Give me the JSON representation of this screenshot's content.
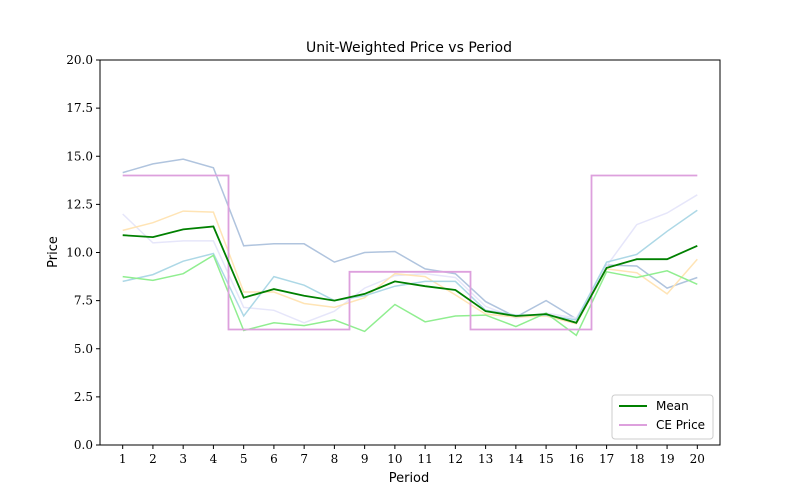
{
  "chart_data": {
    "type": "line",
    "title": "Unit-Weighted Price vs Period",
    "xlabel": "Period",
    "ylabel": "Price",
    "x": [
      1,
      2,
      3,
      4,
      5,
      6,
      7,
      8,
      9,
      10,
      11,
      12,
      13,
      14,
      15,
      16,
      17,
      18,
      19,
      20
    ],
    "x_tick_labels": [
      "1",
      "2",
      "3",
      "4",
      "5",
      "6",
      "7",
      "8",
      "9",
      "10",
      "11",
      "12",
      "13",
      "14",
      "15",
      "16",
      "17",
      "18",
      "19",
      "20"
    ],
    "xlim": [
      0.25,
      20.75
    ],
    "ylim": [
      0,
      20
    ],
    "y_ticks": [
      0,
      2.5,
      5,
      7.5,
      10,
      12.5,
      15,
      17.5,
      20
    ],
    "y_tick_labels": [
      "0.0",
      "2.5",
      "5.0",
      "7.5",
      "10.0",
      "12.5",
      "15.0",
      "17.5",
      "20.0"
    ],
    "grid": false,
    "legend_position": "lower-right",
    "background_series": [
      {
        "color": "#b0c4de",
        "values": [
          14.15,
          14.6,
          14.85,
          14.4,
          10.35,
          10.45,
          10.45,
          9.5,
          10.0,
          10.05,
          9.15,
          8.9,
          7.45,
          6.65,
          7.5,
          6.55,
          9.35,
          9.3,
          8.15,
          8.7
        ]
      },
      {
        "color": "#e6e6fa",
        "values": [
          12.0,
          10.5,
          10.6,
          10.6,
          7.15,
          7.0,
          6.35,
          6.95,
          8.15,
          8.8,
          8.9,
          8.7,
          7.2,
          6.6,
          6.85,
          6.6,
          9.3,
          11.45,
          12.05,
          13.0
        ]
      },
      {
        "color": "#ffe4b5",
        "values": [
          11.15,
          11.55,
          12.15,
          12.1,
          7.95,
          7.95,
          7.35,
          7.15,
          7.65,
          8.9,
          8.75,
          7.8,
          6.8,
          6.65,
          6.7,
          6.3,
          9.15,
          8.95,
          7.85,
          9.65
        ]
      },
      {
        "color": "#add8e6",
        "values": [
          8.5,
          8.85,
          9.55,
          9.95,
          6.7,
          8.75,
          8.3,
          7.5,
          7.75,
          8.25,
          8.5,
          8.5,
          7.0,
          6.75,
          6.75,
          6.5,
          9.5,
          9.9,
          11.1,
          12.2
        ]
      },
      {
        "color": "#90ee90",
        "values": [
          8.75,
          8.55,
          8.9,
          9.85,
          5.95,
          6.35,
          6.2,
          6.5,
          5.9,
          7.3,
          6.4,
          6.7,
          6.75,
          6.15,
          6.85,
          5.7,
          9.0,
          8.7,
          9.05,
          8.35
        ]
      }
    ],
    "series": [
      {
        "name": "Mean",
        "color": "#008000",
        "values": [
          10.9,
          10.8,
          11.2,
          11.35,
          7.65,
          8.1,
          7.75,
          7.5,
          7.85,
          8.5,
          8.25,
          8.05,
          6.95,
          6.7,
          6.8,
          6.35,
          9.2,
          9.65,
          9.65,
          10.35
        ]
      },
      {
        "name": "CE Price",
        "color": "#dda0dd",
        "step_points": [
          [
            1,
            14
          ],
          [
            4.5,
            14
          ],
          [
            4.5,
            6
          ],
          [
            8.5,
            6
          ],
          [
            8.5,
            9
          ],
          [
            12.5,
            9
          ],
          [
            12.5,
            6
          ],
          [
            16.5,
            6
          ],
          [
            16.5,
            14
          ],
          [
            20,
            14
          ]
        ]
      }
    ]
  }
}
